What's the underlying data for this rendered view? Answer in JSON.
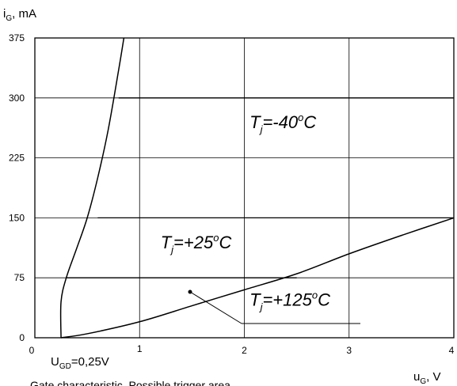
{
  "chart_data": {
    "type": "line",
    "xlabel": {
      "main": "u",
      "sub": "G",
      "unit": ", V"
    },
    "ylabel": {
      "main": "i",
      "sub": "G",
      "unit": ", mA"
    },
    "xlim": [
      0,
      4
    ],
    "ylim": [
      0,
      375
    ],
    "x_ticks": [
      "0",
      "1",
      "2",
      "3",
      "4"
    ],
    "y_ticks": [
      "0",
      "75",
      "150",
      "225",
      "300",
      "375"
    ],
    "grid": true,
    "boundary_curves": [
      {
        "x": [
          0.25,
          0.25,
          0.3,
          0.4,
          0.5,
          0.6,
          0.7,
          0.8,
          0.85
        ],
        "y": [
          0,
          45,
          75,
          112,
          150,
          200,
          260,
          335,
          375
        ]
      },
      {
        "x": [
          0.25,
          0.5,
          1.0,
          1.5,
          2.0,
          2.5,
          3.0,
          3.5,
          4.0
        ],
        "y": [
          0,
          5,
          20,
          40,
          60,
          80,
          105,
          128,
          150
        ]
      }
    ],
    "temperature_lines": [
      {
        "x": [
          0.8,
          4.0
        ],
        "y": [
          300,
          300
        ]
      },
      {
        "x": [
          0.6,
          4.0
        ],
        "y": [
          150,
          150
        ]
      },
      {
        "x": [
          0.3,
          2.5
        ],
        "y": [
          75,
          75
        ]
      }
    ],
    "regions": [
      {
        "label": {
          "main": "T",
          "sub": "j",
          "rest": "=-40",
          "sup": "o",
          "end": "C"
        },
        "x": 2.05,
        "y": 262
      },
      {
        "label": {
          "main": "T",
          "sub": "j",
          "rest": "=+25",
          "sup": "o",
          "end": "C"
        },
        "x": 1.2,
        "y": 112
      },
      {
        "label": {
          "main": "T",
          "sub": "j",
          "rest": "=+125",
          "sup": "o",
          "end": "C"
        },
        "x": 2.05,
        "y": 40
      }
    ],
    "annotations": [
      {
        "text": {
          "main": "U",
          "sub": "GD",
          "rest": "=0,25V"
        }
      }
    ],
    "caption": "Gate characteristic. Possible trigger area"
  }
}
